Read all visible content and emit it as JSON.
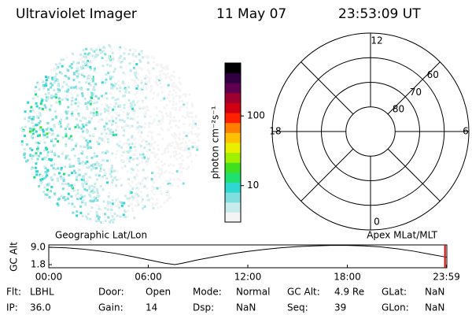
{
  "header": {
    "title": "Ultraviolet Imager",
    "date": "11 May 07",
    "time": "23:53:09 UT"
  },
  "colorbar": {
    "label": "photon cm⁻²s⁻¹",
    "log": true,
    "lim": [
      3,
      575
    ],
    "ticks": [
      10,
      100
    ],
    "colors": [
      "#f4f4f4",
      "#c8ecec",
      "#7fdede",
      "#2ed8d0",
      "#20e070",
      "#40e020",
      "#a0f000",
      "#e8f000",
      "#ffc000",
      "#ff8000",
      "#ff2000",
      "#d00010",
      "#a00030",
      "#600050",
      "#300040",
      "#000000"
    ]
  },
  "polar": {
    "rlim": [
      90,
      50
    ],
    "rings": [
      80,
      70,
      60
    ],
    "mlt_ticks": [
      12,
      6,
      0,
      18
    ]
  },
  "altitude": {
    "left_label": "Geographic Lat/Lon",
    "right_label": "Apex MLat/MLT",
    "ylabel": "GC Alt",
    "ylim": [
      0.5,
      10
    ],
    "yticks": [
      {
        "value": 9,
        "label": "9.0"
      },
      1.8
    ],
    "xlim": [
      0,
      24
    ],
    "xticks": [
      {
        "value": 0,
        "label": "00:00"
      },
      {
        "value": 6,
        "label": "06:00"
      },
      {
        "value": 12,
        "label": "12:00"
      },
      {
        "value": 18,
        "label": "18:00"
      },
      {
        "value": 23.98,
        "label": "23:59"
      }
    ],
    "x": [
      0,
      1,
      2,
      3,
      4,
      5,
      6,
      7,
      7.6,
      8,
      9,
      10,
      11,
      12,
      13,
      14,
      15,
      16,
      17,
      18,
      19,
      20,
      21,
      22,
      23,
      23.98
    ],
    "values": [
      9.0,
      8.8,
      8.3,
      7.5,
      6.5,
      5.2,
      3.8,
      2.4,
      1.8,
      2.3,
      3.8,
      5.1,
      6.3,
      7.3,
      8.1,
      8.8,
      9.3,
      9.6,
      9.8,
      9.8,
      9.6,
      9.2,
      8.4,
      7.4,
      6.1,
      4.9
    ],
    "current": 23.89
  },
  "info": [
    [
      [
        "Flt:",
        "LBHL"
      ],
      [
        "Door:",
        "Open"
      ],
      [
        "Mode:",
        "Normal"
      ],
      [
        "GC Alt:",
        "4.9 Re"
      ],
      [
        "GLat:",
        "NaN"
      ]
    ],
    [
      [
        "IP:",
        "36.0"
      ],
      [
        "Gain:",
        "14"
      ],
      [
        "Dsp:",
        "NaN"
      ],
      [
        "Seq:",
        "39"
      ],
      [
        "GLon:",
        "NaN"
      ]
    ]
  ]
}
